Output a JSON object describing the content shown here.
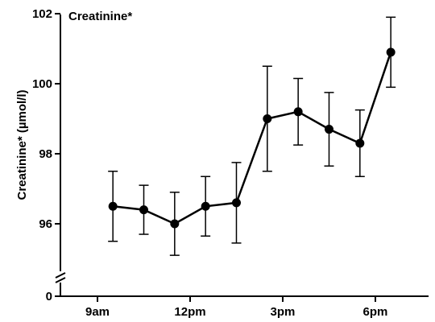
{
  "chart_data": {
    "type": "line",
    "title": "Creatinine*",
    "ylabel": "Creatinine* (µmol/l)",
    "xlabel": "",
    "x_ticks": [
      "9am",
      "12pm",
      "3pm",
      "6pm"
    ],
    "y_ticks": [
      "0",
      "96",
      "98",
      "100",
      "102"
    ],
    "y_axis_break": true,
    "ylim": [
      95,
      102
    ],
    "x_tick_hours": [
      9,
      12,
      15,
      18
    ],
    "series": [
      {
        "x": [
          9.5,
          10.5,
          11.5,
          12.5,
          13.5,
          14.5,
          15.5,
          16.5,
          17.5,
          18.5
        ],
        "values": [
          96.5,
          96.4,
          96.0,
          96.5,
          96.6,
          99.0,
          99.2,
          98.7,
          98.3,
          100.9
        ],
        "error": [
          1.0,
          0.7,
          0.9,
          0.85,
          1.15,
          1.5,
          0.95,
          1.05,
          0.95,
          1.0
        ]
      }
    ]
  }
}
